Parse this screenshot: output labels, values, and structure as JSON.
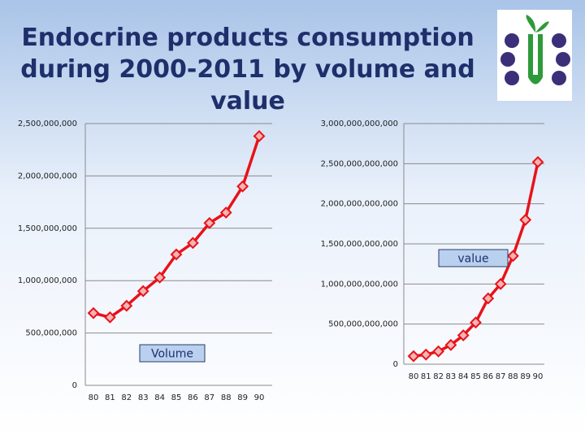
{
  "title": [
    "Endocrine products consumption",
    "during 2000-2011 by volume and",
    "value"
  ],
  "chart_data": [
    {
      "type": "line",
      "annotation": "Volume",
      "categories": [
        "80",
        "81",
        "82",
        "83",
        "84",
        "85",
        "86",
        "87",
        "88",
        "89",
        "90"
      ],
      "series": [
        {
          "color": "#e8121a",
          "values": [
            690000000,
            650000000,
            760000000,
            900000000,
            1030000000,
            1250000000,
            1360000000,
            1550000000,
            1650000000,
            1900000000,
            2380000000
          ]
        }
      ],
      "ylim": [
        0,
        2500000000
      ],
      "yticks": [
        0,
        {
          "value": 500000000,
          "label": "500,000,000"
        },
        {
          "value": 1000000000,
          "label": "1,000,000,000"
        },
        {
          "value": 1500000000,
          "label": "1,500,000,000"
        },
        {
          "value": 2000000000,
          "label": "2,000,000,000"
        },
        {
          "value": 2500000000,
          "label": "2,500,000,000"
        }
      ],
      "grid": true
    },
    {
      "type": "line",
      "annotation": "value",
      "categories": [
        "80",
        "81",
        "82",
        "83",
        "84",
        "85",
        "86",
        "87",
        "88",
        "89",
        "90"
      ],
      "series": [
        {
          "color": "#e8121a",
          "values": [
            100000000000,
            120000000000,
            160000000000,
            240000000000,
            360000000000,
            520000000000,
            820000000000,
            1000000000000,
            1350000000000,
            1800000000000,
            2520000000000
          ]
        }
      ],
      "ylim": [
        0,
        3000000000000
      ],
      "yticks": [
        0,
        {
          "value": 500000000000,
          "label": "500,000,000,000"
        },
        {
          "value": 1000000000000,
          "label": "1,000,000,000,000"
        },
        {
          "value": 1500000000000,
          "label": "1,500,000,000,000"
        },
        {
          "value": 2000000000000,
          "label": "2,000,000,000,000"
        },
        {
          "value": 2500000000000,
          "label": "2,500,000,000,000"
        },
        {
          "value": 3000000000000,
          "label": "3,000,000,000,000"
        }
      ],
      "grid": true
    }
  ]
}
